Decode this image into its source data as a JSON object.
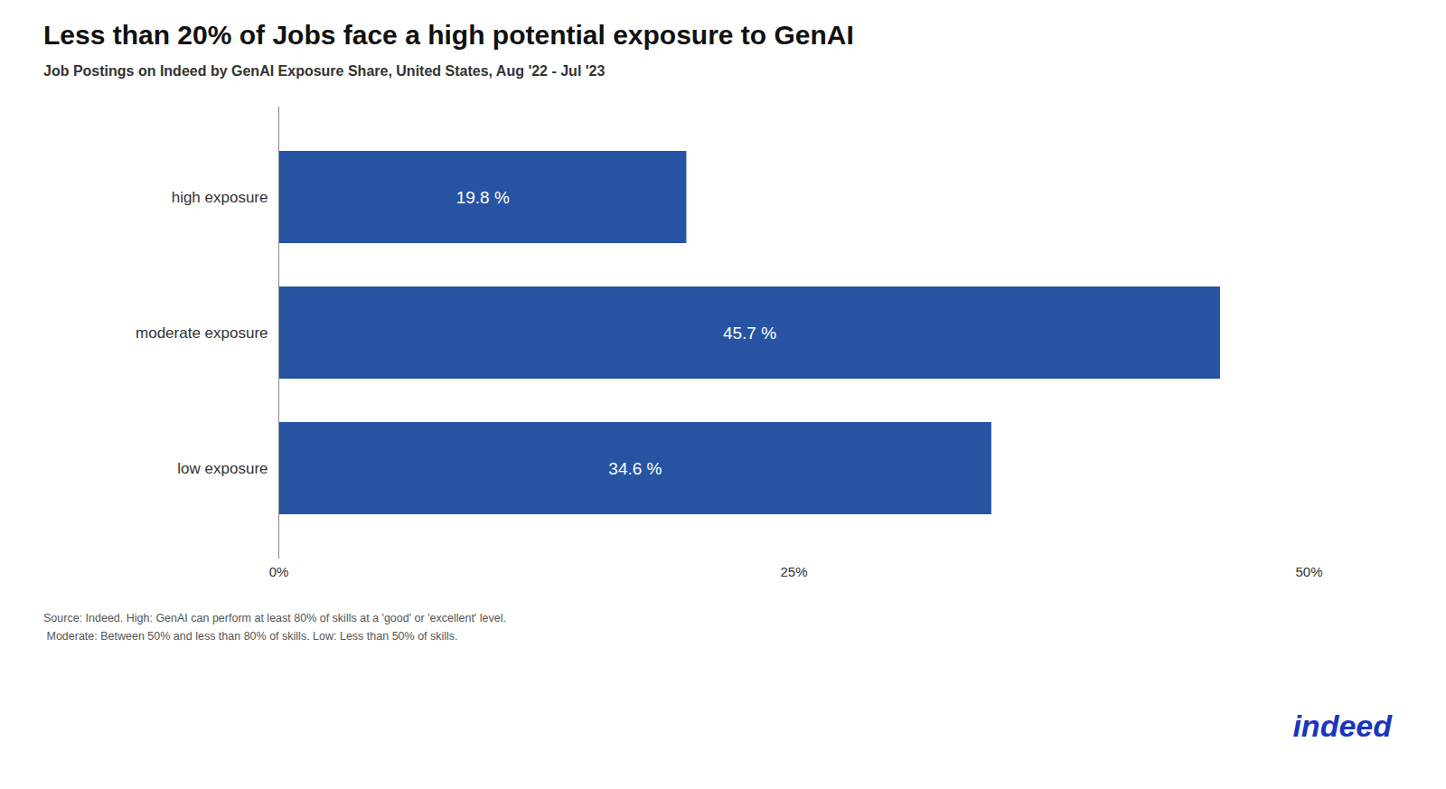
{
  "chart_data": {
    "type": "bar",
    "orientation": "horizontal",
    "title": "Less than 20% of Jobs face a high potential exposure to GenAI",
    "subtitle": "Job Postings on Indeed by GenAI Exposure Share, United States, Aug '22 - Jul '23",
    "categories": [
      "high exposure",
      "moderate exposure",
      "low exposure"
    ],
    "values": [
      19.8,
      45.7,
      34.6
    ],
    "value_labels": [
      "19.8 %",
      "45.7 %",
      "34.6 %"
    ],
    "data_labels": true,
    "color": "#2654A3",
    "xlim": [
      0,
      50
    ],
    "xticks": [
      {
        "value": 0,
        "label": "0%"
      },
      {
        "value": 25,
        "label": "25%"
      },
      {
        "value": 50,
        "label": "50%"
      }
    ],
    "grid": false,
    "annotations": [
      {
        "text": "Source: Indeed. High: GenAI can perform at least 80% of skills at a 'good' or 'excellent' level."
      },
      {
        "text": " Moderate: Between 50% and less than 80% of skills. Low: Less than 50% of skills."
      },
      {
        "text": "indeed",
        "color": "#1A35C0"
      }
    ]
  }
}
